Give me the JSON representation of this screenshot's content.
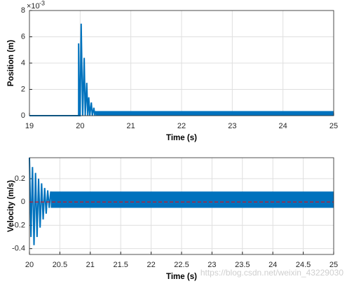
{
  "chart_data": [
    {
      "type": "line",
      "xlabel": "Time (s)",
      "ylabel": "Position (m)",
      "y_scale_base": "×10",
      "y_scale_exponent": "-3",
      "xlim": [
        19,
        25
      ],
      "ylim": [
        0,
        8
      ],
      "xticks": [
        19,
        20,
        21,
        22,
        23,
        24,
        25
      ],
      "yticks": [
        0,
        2,
        4,
        6,
        8
      ],
      "grid": true,
      "series": [
        {
          "color": "#0072bd",
          "x": [
            19,
            19.97,
            19.97,
            19.99,
            20.0,
            20.02,
            20.05,
            20.08,
            20.1,
            20.13,
            20.15,
            20.17,
            20.19,
            20.22,
            20.24,
            20.27,
            20.29,
            20.31
          ],
          "values": [
            0,
            0,
            5.5,
            0,
            0,
            7.0,
            0,
            4.4,
            0,
            2.5,
            0,
            1.4,
            0,
            1.0,
            0,
            0.6,
            0,
            0.35
          ]
        }
      ],
      "bands": [
        {
          "color": "#0072bd",
          "x": [
            20.31,
            25
          ],
          "low": 0,
          "high": 0.35
        }
      ]
    },
    {
      "type": "line",
      "xlabel": "Time (s)",
      "ylabel": "Velocity (m/s)",
      "xlim": [
        20,
        25
      ],
      "ylim": [
        -0.45,
        0.38
      ],
      "xticks": [
        20,
        20.5,
        21,
        21.5,
        22,
        22.5,
        23,
        23.5,
        24,
        24.5,
        25
      ],
      "yticks": [
        -0.4,
        -0.2,
        0,
        0.2
      ],
      "grid": true,
      "series": [
        {
          "color": "#0072bd",
          "x": [
            20,
            20.025,
            20.05,
            20.075,
            20.1,
            20.125,
            20.15,
            20.175,
            20.2,
            20.225,
            20.25,
            20.275,
            20.3,
            20.325,
            20.35
          ],
          "values": [
            0.38,
            -0.3,
            0.3,
            -0.37,
            0.25,
            -0.3,
            0.2,
            -0.22,
            0.16,
            -0.15,
            0.12,
            -0.1,
            0.1,
            -0.05,
            0.09
          ]
        }
      ],
      "bands": [
        {
          "color": "#0072bd",
          "x": [
            20.35,
            25
          ],
          "low": -0.05,
          "high": 0.09
        }
      ],
      "reference_line": {
        "value": 0,
        "color": "#ff0000",
        "style": "dashed"
      }
    }
  ],
  "watermark": "https://blog.csdn.net/weixin_43229030"
}
